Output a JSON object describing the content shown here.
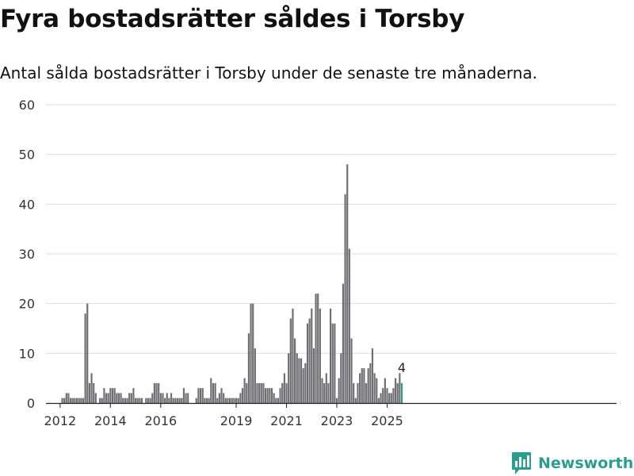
{
  "header": {
    "title": "Fyra bostadsrätter såldes i Torsby",
    "subtitle": "Antal sålda bostadsrätter i Torsby under de senaste tre månaderna."
  },
  "branding": {
    "name": "Newsworthy"
  },
  "colors": {
    "bar": "#6e6e73",
    "highlight": "#2a9d8f",
    "grid": "#dddddd",
    "axis": "#222222"
  },
  "chart_data": {
    "type": "bar",
    "title": "Fyra bostadsrätter såldes i Torsby",
    "xlabel": "",
    "ylabel": "",
    "ylim": [
      0,
      60
    ],
    "yticks": [
      0,
      10,
      20,
      30,
      40,
      50,
      60
    ],
    "xticks": [
      {
        "label": "2012",
        "x": "2012-01"
      },
      {
        "label": "2014",
        "x": "2014-01"
      },
      {
        "label": "2016",
        "x": "2016-01"
      },
      {
        "label": "2019",
        "x": "2019-01"
      },
      {
        "label": "2021",
        "x": "2021-01"
      },
      {
        "label": "2023",
        "x": "2023-01"
      },
      {
        "label": "2025",
        "x": "2025-01"
      }
    ],
    "grid": true,
    "highlight_label": "4",
    "series": [
      {
        "values": [
          {
            "x": "2011-07",
            "y": 0
          },
          {
            "x": "2011-08",
            "y": 0
          },
          {
            "x": "2011-09",
            "y": 0
          },
          {
            "x": "2011-10",
            "y": 0
          },
          {
            "x": "2011-11",
            "y": 0
          },
          {
            "x": "2011-12",
            "y": 0
          },
          {
            "x": "2012-01",
            "y": 0
          },
          {
            "x": "2012-02",
            "y": 1
          },
          {
            "x": "2012-03",
            "y": 1
          },
          {
            "x": "2012-04",
            "y": 2
          },
          {
            "x": "2012-05",
            "y": 2
          },
          {
            "x": "2012-06",
            "y": 1
          },
          {
            "x": "2012-07",
            "y": 1
          },
          {
            "x": "2012-08",
            "y": 1
          },
          {
            "x": "2012-09",
            "y": 1
          },
          {
            "x": "2012-10",
            "y": 1
          },
          {
            "x": "2012-11",
            "y": 1
          },
          {
            "x": "2012-12",
            "y": 1
          },
          {
            "x": "2013-01",
            "y": 18
          },
          {
            "x": "2013-02",
            "y": 20
          },
          {
            "x": "2013-03",
            "y": 4
          },
          {
            "x": "2013-04",
            "y": 6
          },
          {
            "x": "2013-05",
            "y": 4
          },
          {
            "x": "2013-06",
            "y": 2
          },
          {
            "x": "2013-07",
            "y": 0
          },
          {
            "x": "2013-08",
            "y": 1
          },
          {
            "x": "2013-09",
            "y": 1
          },
          {
            "x": "2013-10",
            "y": 3
          },
          {
            "x": "2013-11",
            "y": 2
          },
          {
            "x": "2013-12",
            "y": 2
          },
          {
            "x": "2014-01",
            "y": 3
          },
          {
            "x": "2014-02",
            "y": 3
          },
          {
            "x": "2014-03",
            "y": 3
          },
          {
            "x": "2014-04",
            "y": 2
          },
          {
            "x": "2014-05",
            "y": 2
          },
          {
            "x": "2014-06",
            "y": 2
          },
          {
            "x": "2014-07",
            "y": 1
          },
          {
            "x": "2014-08",
            "y": 1
          },
          {
            "x": "2014-09",
            "y": 1
          },
          {
            "x": "2014-10",
            "y": 2
          },
          {
            "x": "2014-11",
            "y": 2
          },
          {
            "x": "2014-12",
            "y": 3
          },
          {
            "x": "2015-01",
            "y": 1
          },
          {
            "x": "2015-02",
            "y": 1
          },
          {
            "x": "2015-03",
            "y": 1
          },
          {
            "x": "2015-04",
            "y": 1
          },
          {
            "x": "2015-05",
            "y": 0
          },
          {
            "x": "2015-06",
            "y": 1
          },
          {
            "x": "2015-07",
            "y": 1
          },
          {
            "x": "2015-08",
            "y": 1
          },
          {
            "x": "2015-09",
            "y": 2
          },
          {
            "x": "2015-10",
            "y": 4
          },
          {
            "x": "2015-11",
            "y": 4
          },
          {
            "x": "2015-12",
            "y": 4
          },
          {
            "x": "2016-01",
            "y": 2
          },
          {
            "x": "2016-02",
            "y": 2
          },
          {
            "x": "2016-03",
            "y": 1
          },
          {
            "x": "2016-04",
            "y": 2
          },
          {
            "x": "2016-05",
            "y": 1
          },
          {
            "x": "2016-06",
            "y": 2
          },
          {
            "x": "2016-07",
            "y": 1
          },
          {
            "x": "2016-08",
            "y": 1
          },
          {
            "x": "2016-09",
            "y": 1
          },
          {
            "x": "2016-10",
            "y": 1
          },
          {
            "x": "2016-11",
            "y": 1
          },
          {
            "x": "2016-12",
            "y": 3
          },
          {
            "x": "2017-01",
            "y": 2
          },
          {
            "x": "2017-02",
            "y": 2
          },
          {
            "x": "2017-03",
            "y": 0
          },
          {
            "x": "2017-04",
            "y": 0
          },
          {
            "x": "2017-05",
            "y": 0
          },
          {
            "x": "2017-06",
            "y": 1
          },
          {
            "x": "2017-07",
            "y": 3
          },
          {
            "x": "2017-08",
            "y": 3
          },
          {
            "x": "2017-09",
            "y": 3
          },
          {
            "x": "2017-10",
            "y": 1
          },
          {
            "x": "2017-11",
            "y": 1
          },
          {
            "x": "2017-12",
            "y": 1
          },
          {
            "x": "2018-01",
            "y": 5
          },
          {
            "x": "2018-02",
            "y": 4
          },
          {
            "x": "2018-03",
            "y": 4
          },
          {
            "x": "2018-04",
            "y": 1
          },
          {
            "x": "2018-05",
            "y": 2
          },
          {
            "x": "2018-06",
            "y": 3
          },
          {
            "x": "2018-07",
            "y": 2
          },
          {
            "x": "2018-08",
            "y": 1
          },
          {
            "x": "2018-09",
            "y": 1
          },
          {
            "x": "2018-10",
            "y": 1
          },
          {
            "x": "2018-11",
            "y": 1
          },
          {
            "x": "2018-12",
            "y": 1
          },
          {
            "x": "2019-01",
            "y": 1
          },
          {
            "x": "2019-02",
            "y": 1
          },
          {
            "x": "2019-03",
            "y": 2
          },
          {
            "x": "2019-04",
            "y": 3
          },
          {
            "x": "2019-05",
            "y": 5
          },
          {
            "x": "2019-06",
            "y": 4
          },
          {
            "x": "2019-07",
            "y": 14
          },
          {
            "x": "2019-08",
            "y": 20
          },
          {
            "x": "2019-09",
            "y": 20
          },
          {
            "x": "2019-10",
            "y": 11
          },
          {
            "x": "2019-11",
            "y": 4
          },
          {
            "x": "2019-12",
            "y": 4
          },
          {
            "x": "2020-01",
            "y": 4
          },
          {
            "x": "2020-02",
            "y": 4
          },
          {
            "x": "2020-03",
            "y": 3
          },
          {
            "x": "2020-04",
            "y": 3
          },
          {
            "x": "2020-05",
            "y": 3
          },
          {
            "x": "2020-06",
            "y": 3
          },
          {
            "x": "2020-07",
            "y": 2
          },
          {
            "x": "2020-08",
            "y": 1
          },
          {
            "x": "2020-09",
            "y": 1
          },
          {
            "x": "2020-10",
            "y": 3
          },
          {
            "x": "2020-11",
            "y": 4
          },
          {
            "x": "2020-12",
            "y": 6
          },
          {
            "x": "2021-01",
            "y": 4
          },
          {
            "x": "2021-02",
            "y": 10
          },
          {
            "x": "2021-03",
            "y": 17
          },
          {
            "x": "2021-04",
            "y": 19
          },
          {
            "x": "2021-05",
            "y": 13
          },
          {
            "x": "2021-06",
            "y": 10
          },
          {
            "x": "2021-07",
            "y": 9
          },
          {
            "x": "2021-08",
            "y": 9
          },
          {
            "x": "2021-09",
            "y": 7
          },
          {
            "x": "2021-10",
            "y": 8
          },
          {
            "x": "2021-11",
            "y": 16
          },
          {
            "x": "2021-12",
            "y": 17
          },
          {
            "x": "2022-01",
            "y": 19
          },
          {
            "x": "2022-02",
            "y": 11
          },
          {
            "x": "2022-03",
            "y": 22
          },
          {
            "x": "2022-04",
            "y": 22
          },
          {
            "x": "2022-05",
            "y": 19
          },
          {
            "x": "2022-06",
            "y": 5
          },
          {
            "x": "2022-07",
            "y": 4
          },
          {
            "x": "2022-08",
            "y": 6
          },
          {
            "x": "2022-09",
            "y": 4
          },
          {
            "x": "2022-10",
            "y": 19
          },
          {
            "x": "2022-11",
            "y": 16
          },
          {
            "x": "2022-12",
            "y": 16
          },
          {
            "x": "2023-01",
            "y": 1
          },
          {
            "x": "2023-02",
            "y": 5
          },
          {
            "x": "2023-03",
            "y": 10
          },
          {
            "x": "2023-04",
            "y": 24
          },
          {
            "x": "2023-05",
            "y": 42
          },
          {
            "x": "2023-06",
            "y": 48
          },
          {
            "x": "2023-07",
            "y": 31
          },
          {
            "x": "2023-08",
            "y": 13
          },
          {
            "x": "2023-09",
            "y": 4
          },
          {
            "x": "2023-10",
            "y": 1
          },
          {
            "x": "2023-11",
            "y": 4
          },
          {
            "x": "2023-12",
            "y": 6
          },
          {
            "x": "2024-01",
            "y": 7
          },
          {
            "x": "2024-02",
            "y": 7
          },
          {
            "x": "2024-03",
            "y": 4
          },
          {
            "x": "2024-04",
            "y": 7
          },
          {
            "x": "2024-05",
            "y": 8
          },
          {
            "x": "2024-06",
            "y": 11
          },
          {
            "x": "2024-07",
            "y": 6
          },
          {
            "x": "2024-08",
            "y": 5
          },
          {
            "x": "2024-09",
            "y": 1
          },
          {
            "x": "2024-10",
            "y": 2
          },
          {
            "x": "2024-11",
            "y": 3
          },
          {
            "x": "2024-12",
            "y": 5
          },
          {
            "x": "2025-01",
            "y": 3
          },
          {
            "x": "2025-02",
            "y": 2
          },
          {
            "x": "2025-03",
            "y": 2
          },
          {
            "x": "2025-04",
            "y": 3
          },
          {
            "x": "2025-05",
            "y": 5
          },
          {
            "x": "2025-06",
            "y": 4
          },
          {
            "x": "2025-07",
            "y": 6
          },
          {
            "x": "2025-08",
            "y": 4
          }
        ]
      }
    ]
  }
}
